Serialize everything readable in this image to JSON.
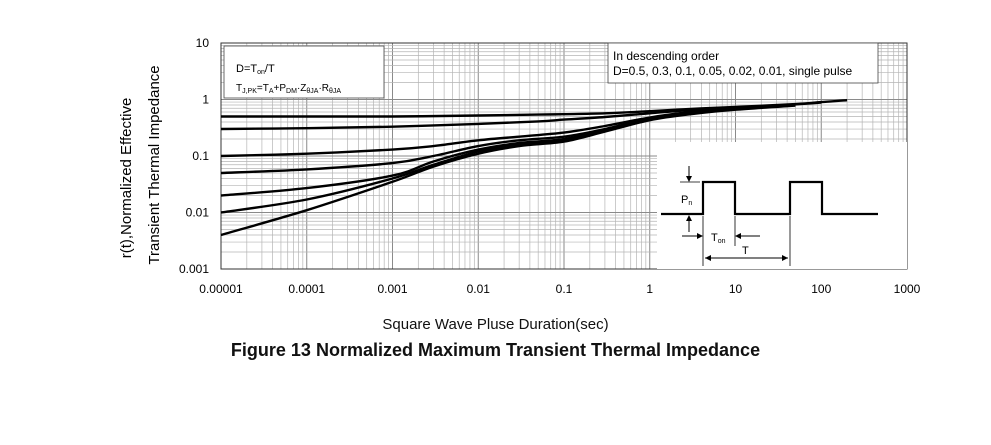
{
  "figure": {
    "caption": "Figure 13 Normalized Maximum Transient Thermal Impedance"
  },
  "chart_data": {
    "type": "line",
    "title": "Figure 13 Normalized Maximum Transient Thermal Impedance",
    "xlabel": "Square Wave Pluse Duration(sec)",
    "ylabel_line1": "r(t),Normalized Effective",
    "ylabel_line2": "Transient Thermal Impedance",
    "xscale": "log",
    "yscale": "log",
    "xlim": [
      1e-05,
      1000
    ],
    "ylim": [
      0.001,
      10
    ],
    "grid": true,
    "x_ticks": [
      "0.00001",
      "0.0001",
      "0.001",
      "0.01",
      "0.1",
      "1",
      "10",
      "100",
      "1000"
    ],
    "y_ticks": [
      "0.001",
      "0.01",
      "0.1",
      "1",
      "10"
    ],
    "annotation_left": {
      "line1": {
        "base": "D=T",
        "sub": "on",
        "tail": "/T"
      },
      "line2": [
        {
          "t": "T",
          "s": "J,PK"
        },
        {
          "t": "=T",
          "s": "A"
        },
        {
          "t": "+P",
          "s": "DM"
        },
        {
          "t": "·Z",
          "s": "θJA"
        },
        {
          "t": "·R",
          "s": "θJA"
        }
      ]
    },
    "annotation_right": {
      "line1": "In descending order",
      "line2": "D=0.5, 0.3, 0.1, 0.05, 0.02, 0.01, single pulse"
    },
    "inset": {
      "pulse_label": {
        "base": "P",
        "sub": "n"
      },
      "ton_label": {
        "base": "T",
        "sub": "on"
      },
      "period_label": "T"
    },
    "series": [
      {
        "x": [
          1e-05,
          0.0001,
          0.001,
          0.01,
          0.05,
          0.1,
          0.3,
          1,
          3,
          10,
          50,
          100,
          200
        ],
        "y": [
          0.5,
          0.5,
          0.5,
          0.52,
          0.54,
          0.55,
          0.57,
          0.62,
          0.68,
          0.74,
          0.83,
          0.9,
          0.97
        ]
      },
      {
        "x": [
          1e-05,
          0.0001,
          0.001,
          0.01,
          0.05,
          0.1,
          0.3,
          1,
          3,
          10,
          50,
          100
        ],
        "y": [
          0.3,
          0.31,
          0.33,
          0.37,
          0.41,
          0.44,
          0.49,
          0.57,
          0.65,
          0.72,
          0.82,
          0.88
        ]
      },
      {
        "x": [
          1e-05,
          0.0001,
          0.001,
          0.003,
          0.01,
          0.03,
          0.1,
          0.3,
          1,
          3,
          10,
          50
        ],
        "y": [
          0.1,
          0.11,
          0.13,
          0.15,
          0.19,
          0.22,
          0.26,
          0.34,
          0.48,
          0.6,
          0.7,
          0.82
        ]
      },
      {
        "x": [
          1e-05,
          0.0001,
          0.001,
          0.003,
          0.01,
          0.03,
          0.1,
          0.3,
          1,
          3,
          10,
          50
        ],
        "y": [
          0.05,
          0.058,
          0.075,
          0.1,
          0.15,
          0.19,
          0.22,
          0.3,
          0.46,
          0.58,
          0.69,
          0.81
        ]
      },
      {
        "x": [
          1e-05,
          0.0001,
          0.001,
          0.003,
          0.01,
          0.03,
          0.1,
          0.3,
          1,
          3,
          10,
          50
        ],
        "y": [
          0.02,
          0.027,
          0.045,
          0.08,
          0.13,
          0.17,
          0.2,
          0.29,
          0.45,
          0.57,
          0.68,
          0.8
        ]
      },
      {
        "x": [
          1e-05,
          0.0001,
          0.001,
          0.003,
          0.01,
          0.03,
          0.1,
          0.3,
          1,
          3,
          10,
          50
        ],
        "y": [
          0.01,
          0.017,
          0.04,
          0.07,
          0.12,
          0.16,
          0.19,
          0.28,
          0.44,
          0.56,
          0.67,
          0.79
        ]
      },
      {
        "x": [
          1e-05,
          0.0001,
          0.001,
          0.003,
          0.01,
          0.03,
          0.1,
          0.3,
          1,
          3,
          10,
          50
        ],
        "y": [
          0.004,
          0.011,
          0.035,
          0.065,
          0.11,
          0.15,
          0.18,
          0.27,
          0.43,
          0.55,
          0.66,
          0.78
        ]
      }
    ]
  }
}
